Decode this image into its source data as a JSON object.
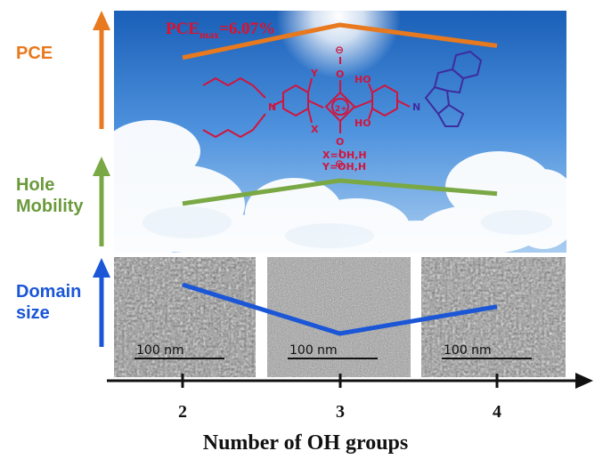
{
  "labels": {
    "pce": "PCE",
    "hole_mobility_line1": "Hole",
    "hole_mobility_line2": "Mobility",
    "domain_size_line1": "Domain",
    "domain_size_line2": "size"
  },
  "pce_max": {
    "prefix": "PCE",
    "subscript": "max",
    "value": "=6.07%"
  },
  "x_axis": {
    "label": "Number of OH groups",
    "ticks": [
      "2",
      "3",
      "4"
    ]
  },
  "tem_images": [
    {
      "scale_bar": "100 nm"
    },
    {
      "scale_bar": "100 nm"
    },
    {
      "scale_bar": "100 nm"
    }
  ],
  "molecule": {
    "charge_label": "2+",
    "oxide_label": "O",
    "minus_sign": "⊖",
    "hydroxyl_label": "HO",
    "amine_label": "N",
    "substituent_x": "X",
    "substituent_y": "Y",
    "x_def": "X=OH,H",
    "y_def": "Y=OH,H"
  },
  "chart_data": {
    "type": "line",
    "x": [
      2,
      3,
      4
    ],
    "xlabel": "Number of OH groups",
    "series": [
      {
        "name": "PCE",
        "values": [
          0.45,
          1.0,
          0.65
        ]
      },
      {
        "name": "Hole Mobility",
        "values": [
          0.3,
          1.0,
          0.6
        ]
      },
      {
        "name": "Domain size",
        "values": [
          1.0,
          0.0,
          0.55
        ]
      }
    ],
    "annotations": [
      "PCEmax=6.07%"
    ]
  },
  "colors": {
    "pce": "#e8791e",
    "hole": "#7aa844",
    "domain": "#1a56d6",
    "molecule": "#d2143c",
    "carbazole": "#3f2c9e"
  }
}
